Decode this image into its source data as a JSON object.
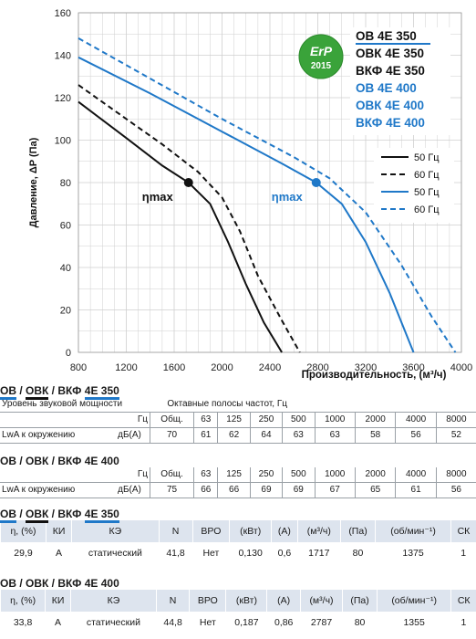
{
  "chart_data": {
    "type": "line",
    "xlabel": "Производительность, (м³/ч)",
    "ylabel": "Давление, ΔP (Па)",
    "xlim": [
      800,
      4000
    ],
    "ylim": [
      0,
      160
    ],
    "x_ticks": [
      "800",
      "1200",
      "1600",
      "2000",
      "2400",
      "2800",
      "3200",
      "3600",
      "4000"
    ],
    "y_ticks": [
      "0",
      "20",
      "40",
      "60",
      "80",
      "100",
      "120",
      "140",
      "160"
    ],
    "grid": true,
    "series": [
      {
        "name": "50 Гц",
        "model": "ОВ 4Е 350",
        "color": "#111111",
        "style": "solid",
        "points": [
          [
            800,
            118
          ],
          [
            1200,
            101
          ],
          [
            1500,
            88
          ],
          [
            1720,
            80
          ],
          [
            1900,
            70
          ],
          [
            2050,
            52
          ],
          [
            2200,
            32
          ],
          [
            2350,
            14
          ],
          [
            2500,
            0
          ]
        ]
      },
      {
        "name": "60 Гц",
        "model": "ОВ 4Е 350",
        "color": "#111111",
        "style": "dashed",
        "points": [
          [
            800,
            126
          ],
          [
            1200,
            110
          ],
          [
            1500,
            98
          ],
          [
            1800,
            85
          ],
          [
            2000,
            73
          ],
          [
            2150,
            57
          ],
          [
            2300,
            36
          ],
          [
            2500,
            15
          ],
          [
            2650,
            0
          ]
        ]
      },
      {
        "name": "50 Гц",
        "model": "ОВ 4Е 400",
        "color": "#1f78c8",
        "style": "solid",
        "points": [
          [
            800,
            139
          ],
          [
            1400,
            122
          ],
          [
            2000,
            104
          ],
          [
            2500,
            89
          ],
          [
            2787,
            80
          ],
          [
            3000,
            70
          ],
          [
            3200,
            52
          ],
          [
            3400,
            28
          ],
          [
            3600,
            0
          ]
        ]
      },
      {
        "name": "60 Гц",
        "model": "ОВ 4Е 400",
        "color": "#1f78c8",
        "style": "dashed",
        "points": [
          [
            800,
            148
          ],
          [
            1400,
            129
          ],
          [
            2000,
            110
          ],
          [
            2600,
            92
          ],
          [
            2900,
            82
          ],
          [
            3200,
            66
          ],
          [
            3500,
            41
          ],
          [
            3750,
            17
          ],
          [
            3950,
            0
          ]
        ]
      }
    ],
    "annotations": [
      {
        "text": "ηmax",
        "x": 1720,
        "y": 80,
        "color": "#111111"
      },
      {
        "text": "ηmax",
        "x": 2787,
        "y": 80,
        "color": "#1f78c8"
      }
    ],
    "legend_position": "right",
    "badge": {
      "top": "ErP",
      "bottom": "2015",
      "color": "#3aa33a"
    },
    "model_list": [
      {
        "text": "ОВ 4Е 350",
        "color": "#111111"
      },
      {
        "text": "ОВК 4Е 350",
        "color": "#111111"
      },
      {
        "text": "ВКФ 4Е 350",
        "color": "#111111"
      },
      {
        "text": "ОВ 4Е 400",
        "color": "#1f78c8"
      },
      {
        "text": "ОВК 4Е 400",
        "color": "#1f78c8"
      },
      {
        "text": "ВКФ 4Е 400",
        "color": "#1f78c8"
      }
    ]
  },
  "acoustic": {
    "t350_title": {
      "a": "ОВ",
      "b": " / ",
      "c": "ОВК",
      "d": " / ВКФ ",
      "e": "4Е 350"
    },
    "head_left": "Уровень звуковой мощности",
    "head_right": "Октавные полосы частот, Гц",
    "t350": {
      "hz_label": "Гц",
      "cols": [
        "Общ.",
        "63",
        "125",
        "250",
        "500",
        "1000",
        "2000",
        "4000",
        "8000"
      ],
      "row_label": "LwA к окружению",
      "unit": "дБ(А)",
      "values": [
        "70",
        "61",
        "62",
        "64",
        "63",
        "63",
        "58",
        "56",
        "52"
      ]
    },
    "t400_title": "ОВ / ОВК / ВКФ 4Е 400",
    "t400": {
      "hz_label": "Гц",
      "cols": [
        "Общ.",
        "63",
        "125",
        "250",
        "500",
        "1000",
        "2000",
        "4000",
        "8000"
      ],
      "row_label": "LwA к окружению",
      "unit": "дБ(А)",
      "values": [
        "75",
        "66",
        "66",
        "69",
        "69",
        "67",
        "65",
        "61",
        "56"
      ]
    }
  },
  "perf": {
    "p350_title": {
      "a": "ОВ",
      "b": " / ",
      "c": "ОВК",
      "d": " / ВКФ ",
      "e": "4Е 350"
    },
    "headers": [
      "η, (%)",
      "КИ",
      "КЭ",
      "N",
      "ВРО",
      "(кВт)",
      "(А)",
      "(м³/ч)",
      "(Па)",
      "(об/мин⁻¹)",
      "СК"
    ],
    "p350_values": [
      "29,9",
      "А",
      "статический",
      "41,8",
      "Нет",
      "0,130",
      "0,6",
      "1717",
      "80",
      "1375",
      "1"
    ],
    "p400_title": "ОВ / ОВК / ВКФ 4Е 400",
    "p400_values": [
      "33,8",
      "А",
      "статический",
      "44,8",
      "Нет",
      "0,187",
      "0,86",
      "2787",
      "80",
      "1355",
      "1"
    ]
  }
}
